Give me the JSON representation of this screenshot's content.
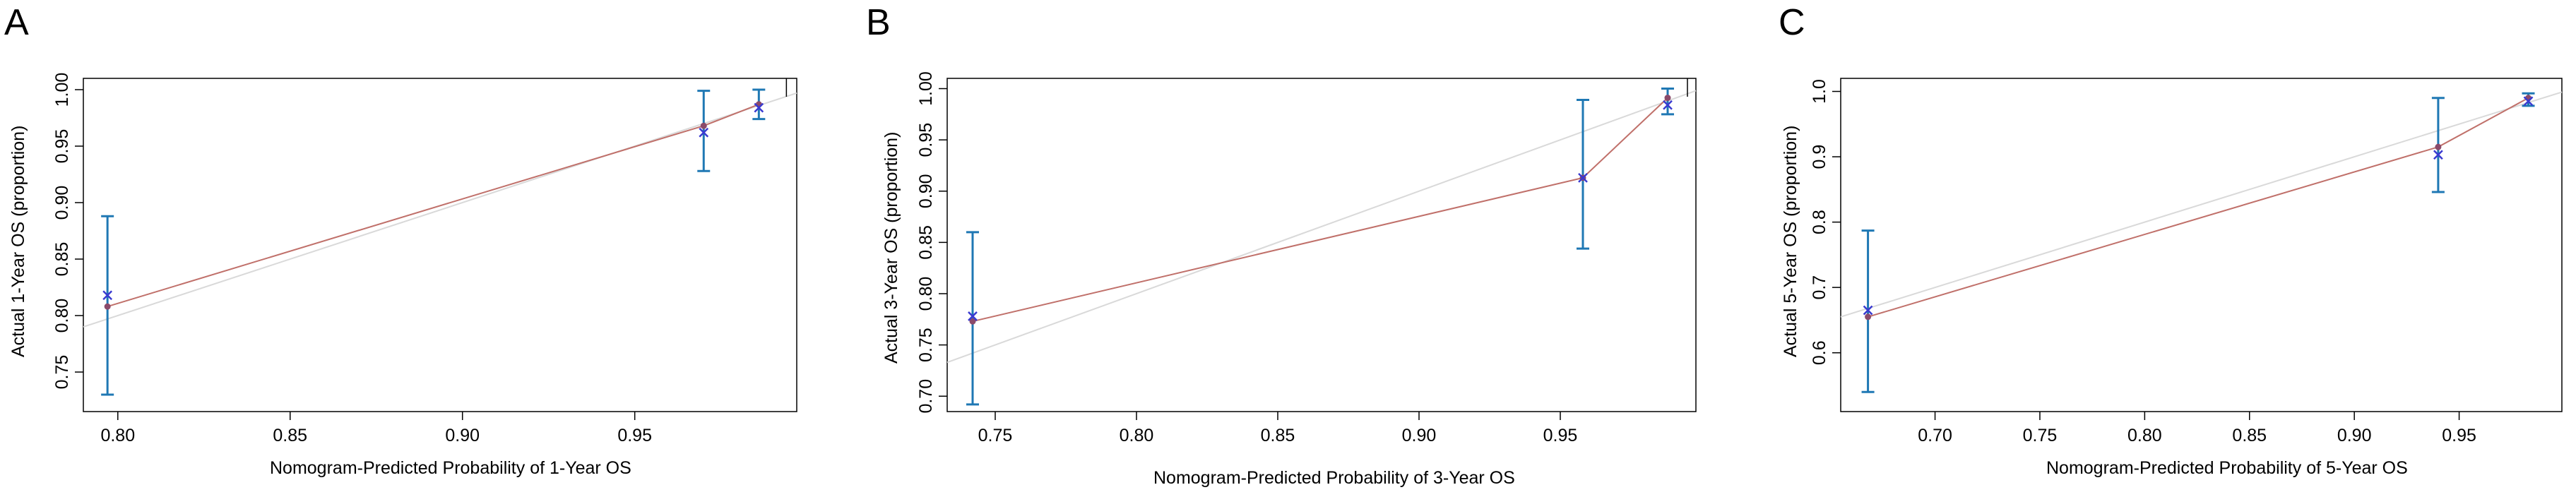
{
  "panels": {
    "a": {
      "letter": "A"
    },
    "b": {
      "letter": "B"
    },
    "c": {
      "letter": "C"
    }
  },
  "colors": {
    "ideal_line": "#d9d9d9",
    "apparent_line": "#c0706a",
    "error_bar": "#1f78b4",
    "observed_marker": "#8b4a6a",
    "bias_corrected_marker": "#3a3ad0"
  },
  "chart_data": [
    {
      "type": "line",
      "panel": "A",
      "title": "",
      "xlabel": "Nomogram-Predicted Probability of 1-Year OS",
      "ylabel": "Actual 1-Year OS (proportion)",
      "xlim": [
        0.79,
        0.997
      ],
      "ylim": [
        0.715,
        1.01
      ],
      "xticks": [
        "0.80",
        "0.85",
        "0.90",
        "0.95"
      ],
      "yticks": [
        "0.75",
        "0.80",
        "0.85",
        "0.90",
        "0.95",
        "1.00"
      ],
      "points": [
        {
          "x": 0.797,
          "observed": 0.808,
          "bias_corrected": 0.818,
          "lower": 0.73,
          "upper": 0.888
        },
        {
          "x": 0.97,
          "observed": 0.968,
          "bias_corrected": 0.962,
          "lower": 0.928,
          "upper": 0.999
        },
        {
          "x": 0.986,
          "observed": 0.987,
          "bias_corrected": 0.984,
          "lower": 0.974,
          "upper": 1.0
        }
      ],
      "cut_tick_x": 0.994
    },
    {
      "type": "line",
      "panel": "B",
      "title": "",
      "xlabel": "Nomogram-Predicted Probability of 3-Year OS",
      "ylabel": "Actual 3-Year OS (proportion)",
      "xlim": [
        0.733,
        0.998
      ],
      "ylim": [
        0.685,
        1.01
      ],
      "xticks": [
        "0.75",
        "0.80",
        "0.85",
        "0.90",
        "0.95"
      ],
      "yticks": [
        "0.70",
        "0.75",
        "0.80",
        "0.85",
        "0.90",
        "0.95",
        "1.00"
      ],
      "points": [
        {
          "x": 0.742,
          "observed": 0.773,
          "bias_corrected": 0.778,
          "lower": 0.692,
          "upper": 0.86
        },
        {
          "x": 0.958,
          "observed": 0.913,
          "bias_corrected": 0.913,
          "lower": 0.844,
          "upper": 0.989
        },
        {
          "x": 0.988,
          "observed": 0.991,
          "bias_corrected": 0.984,
          "lower": 0.975,
          "upper": 1.0
        }
      ],
      "cut_tick_x": 0.995
    },
    {
      "type": "line",
      "panel": "C",
      "title": "",
      "xlabel": "Nomogram-Predicted Probability of 5-Year OS",
      "ylabel": "Actual 5-Year OS (proportion)",
      "xlim": [
        0.655,
        0.999
      ],
      "ylim": [
        0.51,
        1.02
      ],
      "xticks": [
        "0.70",
        "0.75",
        "0.80",
        "0.85",
        "0.90",
        "0.95"
      ],
      "yticks": [
        "0.6",
        "0.7",
        "0.8",
        "0.9",
        "1.0"
      ],
      "points": [
        {
          "x": 0.668,
          "observed": 0.655,
          "bias_corrected": 0.665,
          "lower": 0.54,
          "upper": 0.787
        },
        {
          "x": 0.94,
          "observed": 0.915,
          "bias_corrected": 0.903,
          "lower": 0.846,
          "upper": 0.99
        },
        {
          "x": 0.983,
          "observed": 0.99,
          "bias_corrected": 0.985,
          "lower": 0.978,
          "upper": 0.997
        }
      ],
      "cut_tick_x": null
    }
  ]
}
